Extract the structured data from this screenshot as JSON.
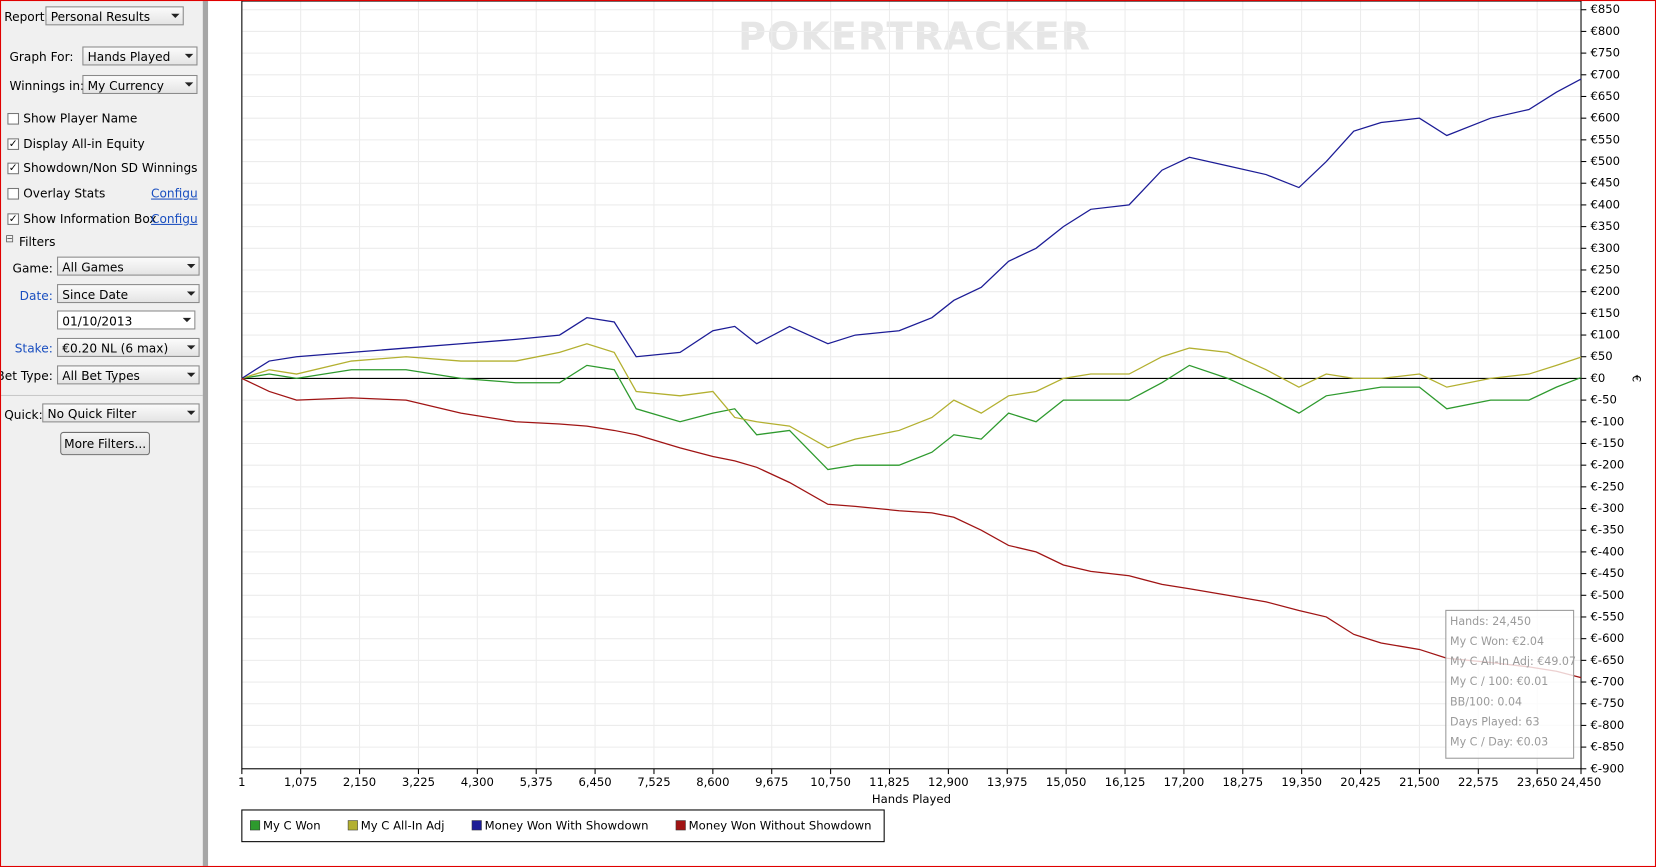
{
  "sidebar": {
    "report_label": "Report:",
    "report": "Personal Results",
    "graph_for_label": "Graph For:",
    "graph_for": "Hands Played",
    "winnings_label": "Winnings in:",
    "winnings": "My Currency",
    "options": [
      {
        "label": "Show Player Name",
        "checked": false
      },
      {
        "label": "Display All-in Equity",
        "checked": true
      },
      {
        "label": "Showdown/Non SD Winnings",
        "checked": true
      },
      {
        "label": "Overlay Stats",
        "checked": false,
        "link": "Configure"
      },
      {
        "label": "Show Information Box",
        "checked": true,
        "link": "Configure"
      }
    ],
    "filters_title": "Filters",
    "game_label": "Game:",
    "game": "All Games",
    "date_label": "Date:",
    "date": "Since Date",
    "date_value": "01/10/2013",
    "stake_label": "Stake:",
    "stake": "€0.20 NL (6 max)",
    "bet_type_label": "Bet Type:",
    "bet_type": "All Bet Types",
    "quick_label": "Quick:",
    "quick": "No Quick Filter",
    "more_filters": "More Filters..."
  },
  "chart_data": {
    "type": "line",
    "watermark": "POKERTRACKER",
    "x_label": "Hands Played",
    "y_label": "€",
    "xlim": [
      1,
      24450
    ],
    "ylim": [
      -900,
      870
    ],
    "grid": true,
    "zero_line": true,
    "xticks": [
      1,
      {
        "value": 1075,
        "label": "1,075"
      },
      {
        "value": 2150,
        "label": "2,150"
      },
      {
        "value": 3225,
        "label": "3,225"
      },
      {
        "value": 4300,
        "label": "4,300"
      },
      {
        "value": 5375,
        "label": "5,375"
      },
      {
        "value": 6450,
        "label": "6,450"
      },
      {
        "value": 7525,
        "label": "7,525"
      },
      {
        "value": 8600,
        "label": "8,600"
      },
      {
        "value": 9675,
        "label": "9,675"
      },
      {
        "value": 10750,
        "label": "10,750"
      },
      {
        "value": 11825,
        "label": "11,825"
      },
      {
        "value": 12900,
        "label": "12,900"
      },
      {
        "value": 13975,
        "label": "13,975"
      },
      {
        "value": 15050,
        "label": "15,050"
      },
      {
        "value": 16125,
        "label": "16,125"
      },
      {
        "value": 17200,
        "label": "17,200"
      },
      {
        "value": 18275,
        "label": "18,275"
      },
      {
        "value": 19350,
        "label": "19,350"
      },
      {
        "value": 20425,
        "label": "20,425"
      },
      {
        "value": 21500,
        "label": "21,500"
      },
      {
        "value": 22575,
        "label": "22,575"
      },
      {
        "value": 23650,
        "label": "23,650"
      },
      {
        "value": 24450,
        "label": "24,450"
      }
    ],
    "yticks": [
      {
        "value": 850,
        "label": "€850"
      },
      {
        "value": 800,
        "label": "€800"
      },
      {
        "value": 750,
        "label": "€750"
      },
      {
        "value": 700,
        "label": "€700"
      },
      {
        "value": 650,
        "label": "€650"
      },
      {
        "value": 600,
        "label": "€600"
      },
      {
        "value": 550,
        "label": "€550"
      },
      {
        "value": 500,
        "label": "€500"
      },
      {
        "value": 450,
        "label": "€450"
      },
      {
        "value": 400,
        "label": "€400"
      },
      {
        "value": 350,
        "label": "€350"
      },
      {
        "value": 300,
        "label": "€300"
      },
      {
        "value": 250,
        "label": "€250"
      },
      {
        "value": 200,
        "label": "€200"
      },
      {
        "value": 150,
        "label": "€150"
      },
      {
        "value": 100,
        "label": "€100"
      },
      {
        "value": 50,
        "label": "€50"
      },
      {
        "value": 0,
        "label": "€0"
      },
      {
        "value": -50,
        "label": "€-50"
      },
      {
        "value": -100,
        "label": "€-100"
      },
      {
        "value": -150,
        "label": "€-150"
      },
      {
        "value": -200,
        "label": "€-200"
      },
      {
        "value": -250,
        "label": "€-250"
      },
      {
        "value": -300,
        "label": "€-300"
      },
      {
        "value": -350,
        "label": "€-350"
      },
      {
        "value": -400,
        "label": "€-400"
      },
      {
        "value": -450,
        "label": "€-450"
      },
      {
        "value": -500,
        "label": "€-500"
      },
      {
        "value": -550,
        "label": "€-550"
      },
      {
        "value": -600,
        "label": "€-600"
      },
      {
        "value": -650,
        "label": "€-650"
      },
      {
        "value": -700,
        "label": "€-700"
      },
      {
        "value": -750,
        "label": "€-750"
      },
      {
        "value": -800,
        "label": "€-800"
      },
      {
        "value": -850,
        "label": "€-850"
      },
      {
        "value": -900,
        "label": "€-900"
      }
    ],
    "x": [
      1,
      500,
      1000,
      2000,
      3000,
      4000,
      5000,
      5800,
      6300,
      6800,
      7200,
      8000,
      8600,
      9000,
      9400,
      10000,
      10700,
      11200,
      12000,
      12600,
      13000,
      13500,
      14000,
      14500,
      15000,
      15500,
      16200,
      16800,
      17300,
      18000,
      18700,
      19300,
      19800,
      20300,
      20800,
      21500,
      22000,
      22800,
      23500,
      24000,
      24450
    ],
    "series": [
      {
        "name": "My C Won",
        "color": "#2e9a2e",
        "values": [
          0,
          10,
          0,
          20,
          20,
          0,
          -10,
          -10,
          30,
          20,
          -70,
          -100,
          -80,
          -70,
          -130,
          -120,
          -210,
          -200,
          -200,
          -170,
          -130,
          -140,
          -80,
          -100,
          -50,
          -50,
          -50,
          -10,
          30,
          0,
          -40,
          -80,
          -40,
          -30,
          -20,
          -20,
          -70,
          -50,
          -50,
          -20,
          2.04
        ]
      },
      {
        "name": "My C All-In Adj",
        "color": "#b3b030",
        "values": [
          0,
          20,
          10,
          40,
          50,
          40,
          40,
          60,
          80,
          60,
          -30,
          -40,
          -30,
          -90,
          -100,
          -110,
          -160,
          -140,
          -120,
          -90,
          -50,
          -80,
          -40,
          -30,
          0,
          10,
          10,
          50,
          70,
          60,
          20,
          -20,
          10,
          0,
          0,
          10,
          -20,
          0,
          10,
          30,
          49.07
        ]
      },
      {
        "name": "Money Won With Showdown",
        "color": "#1c1c96",
        "values": [
          0,
          40,
          50,
          60,
          70,
          80,
          90,
          100,
          140,
          130,
          50,
          60,
          110,
          120,
          80,
          120,
          80,
          100,
          110,
          140,
          180,
          210,
          270,
          300,
          350,
          390,
          400,
          480,
          510,
          490,
          470,
          440,
          500,
          570,
          590,
          600,
          560,
          600,
          620,
          660,
          690
        ]
      },
      {
        "name": "Money Won Without Showdown",
        "color": "#a01414",
        "values": [
          0,
          -30,
          -50,
          -45,
          -50,
          -80,
          -100,
          -105,
          -110,
          -120,
          -130,
          -160,
          -180,
          -190,
          -205,
          -240,
          -290,
          -295,
          -305,
          -310,
          -320,
          -350,
          -385,
          -400,
          -430,
          -445,
          -455,
          -475,
          -485,
          -500,
          -515,
          -535,
          -550,
          -590,
          -610,
          -625,
          -645,
          -655,
          -665,
          -675,
          -690
        ]
      }
    ],
    "info_box": [
      "Hands: 24,450",
      "My C Won: €2.04",
      "My C All-In Adj: €49.07",
      "My C / 100: €0.01",
      "BB/100: 0.04",
      "Days Played: 63",
      "My C / Day: €0.03"
    ]
  }
}
